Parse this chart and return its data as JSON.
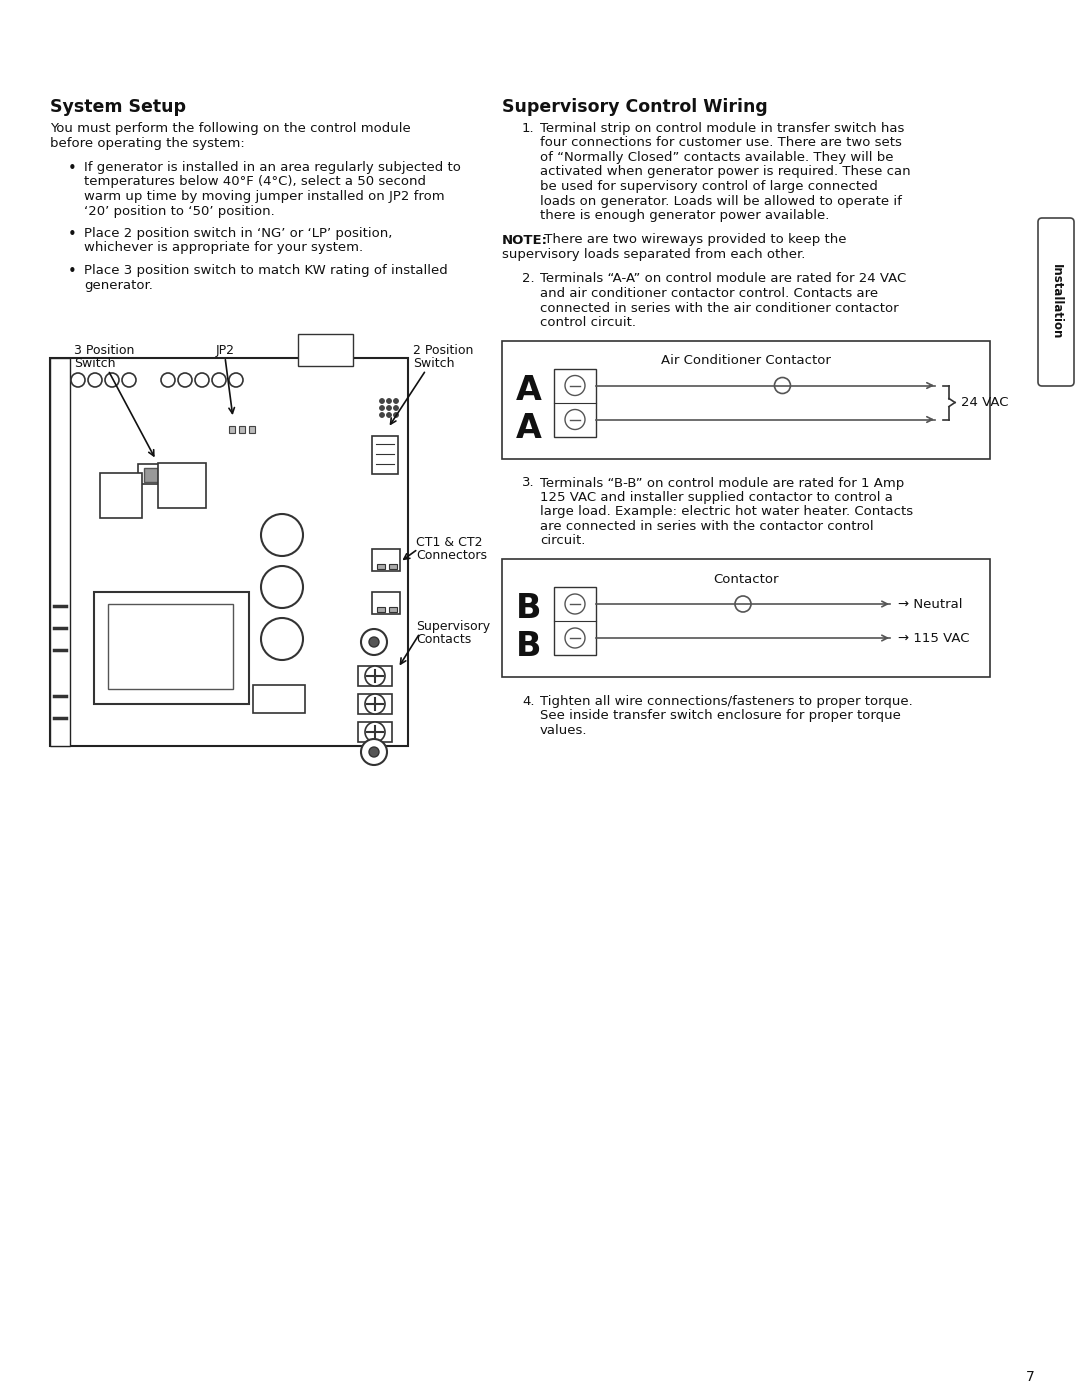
{
  "bg_color": "#ffffff",
  "page_number": "7",
  "left_title": "System Setup",
  "left_body_line1": "You must perform the following on the control module",
  "left_body_line2": "before operating the system:",
  "bullet1_lines": [
    "If generator is installed in an area regularly subjected to",
    "temperatures below 40°F (4°C), select a 50 second",
    "warm up time by moving jumper installed on JP2 from",
    "‘20’ position to ‘50’ position."
  ],
  "bullet2_lines": [
    "Place 2 position switch in ‘NG’ or ‘LP’ position,",
    "whichever is appropriate for your system."
  ],
  "bullet3_lines": [
    "Place 3 position switch to match KW rating of installed",
    "generator."
  ],
  "right_title": "Supervisory Control Wiring",
  "item1_lines": [
    "Terminal strip on control module in transfer switch has",
    "four connections for customer use. There are two sets",
    "of “Normally Closed” contacts available. They will be",
    "activated when generator power is required. These can",
    "be used for supervisory control of large connected",
    "loads on generator. Loads will be allowed to operate if",
    "there is enough generator power available."
  ],
  "note_bold": "NOTE:",
  "note_rest": " There are two wireways provided to keep the",
  "note_line2": "supervisory loads separated from each other.",
  "item2_lines": [
    "Terminals “A-A” on control module are rated for 24 VAC",
    "and air conditioner contactor control. Contacts are",
    "connected in series with the air conditioner contactor",
    "control circuit."
  ],
  "ac_title": "Air Conditioner Contactor",
  "ac_24vac": "24 VAC",
  "item3_lines": [
    "Terminals “B-B” on control module are rated for 1 Amp",
    "125 VAC and installer supplied contactor to control a",
    "large load. Example: electric hot water heater. Contacts",
    "are connected in series with the contactor control",
    "circuit."
  ],
  "b_title": "Contactor",
  "b_neutral": "Neutral",
  "b_115vac": "115 VAC",
  "item4_lines": [
    "Tighten all wire connections/fasteners to proper torque.",
    "See inside transfer switch enclosure for proper torque",
    "values."
  ],
  "sidebar_text": "Installation",
  "diag_3pos": "3 Position",
  "diag_switch": "Switch",
  "diag_jp2": "JP2",
  "diag_2pos": "2 Position",
  "diag_2switch": "Switch",
  "diag_ct": "CT1 & CT2",
  "diag_connectors": "Connectors",
  "diag_supervisory": "Supervisory",
  "diag_contacts": "Contacts"
}
